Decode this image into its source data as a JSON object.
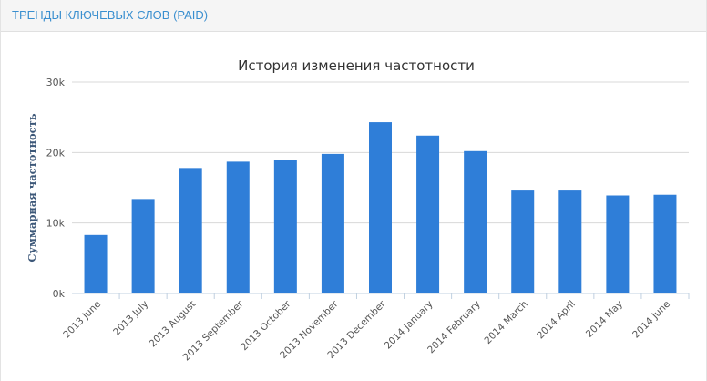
{
  "panel": {
    "title": "ТРЕНДЫ КЛЮЧЕВЫХ СЛОВ (PAID)"
  },
  "chart_data": {
    "type": "bar",
    "title": "История изменения частотности",
    "xlabel": "",
    "ylabel": "Суммарная частотность",
    "categories": [
      "2013 June",
      "2013 July",
      "2013 August",
      "2013 September",
      "2013 October",
      "2013 November",
      "2013 December",
      "2014 January",
      "2014 February",
      "2014 March",
      "2014 April",
      "2014 May",
      "2014 June"
    ],
    "values": [
      8300,
      13400,
      17800,
      18700,
      19000,
      19800,
      24300,
      22400,
      20200,
      14600,
      14600,
      13900,
      14000
    ],
    "ylim": [
      0,
      30000
    ],
    "yticks": [
      0,
      10000,
      20000,
      30000
    ],
    "ytick_labels": [
      "0k",
      "10k",
      "20k",
      "30k"
    ],
    "bar_color": "#2f7ed8",
    "grid": true
  }
}
